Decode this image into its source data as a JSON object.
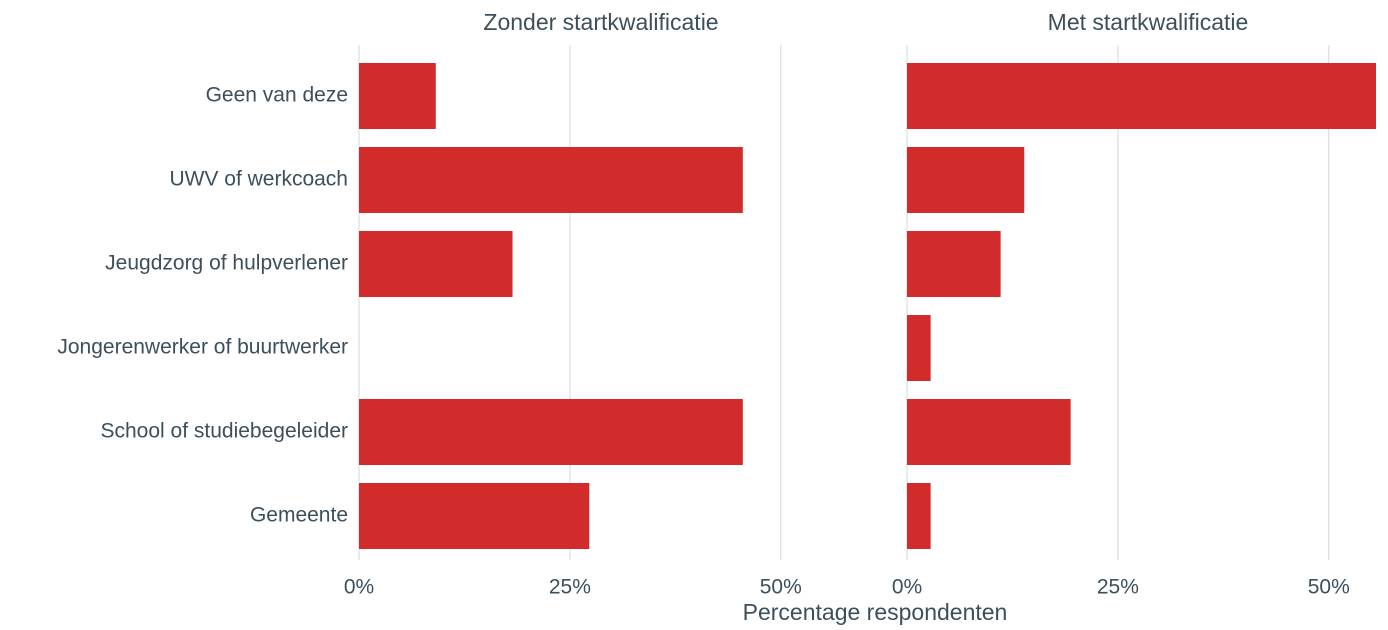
{
  "chart_data": [
    {
      "type": "bar",
      "title": "Zonder startkwalificatie",
      "categories": [
        "Geen van deze",
        "UWV of werkcoach",
        "Jeugdzorg of hulpverlener",
        "Jongerenwerker of buurtwerker",
        "School of studiebegeleider",
        "Gemeente"
      ],
      "values": [
        9.1,
        45.5,
        18.2,
        0,
        45.5,
        27.3
      ],
      "color": "#d22b2b",
      "xlim": [
        0,
        55.6
      ],
      "xticks": [
        {
          "value": 0,
          "label": "0%"
        },
        {
          "value": 25,
          "label": "25%"
        },
        {
          "value": 50,
          "label": "50%"
        }
      ],
      "x_label": "Percentage respondenten",
      "grid": true
    },
    {
      "type": "bar",
      "title": "Met startkwalificatie",
      "values": [
        55.6,
        13.9,
        11.1,
        2.8,
        19.4,
        2.8
      ],
      "color": "#d22b2b",
      "xlim": [
        0,
        55.6
      ],
      "xticks": [
        {
          "value": 0,
          "label": "0%"
        },
        {
          "value": 25,
          "label": "25%"
        },
        {
          "value": 50,
          "label": "50%"
        }
      ],
      "grid": true
    }
  ]
}
